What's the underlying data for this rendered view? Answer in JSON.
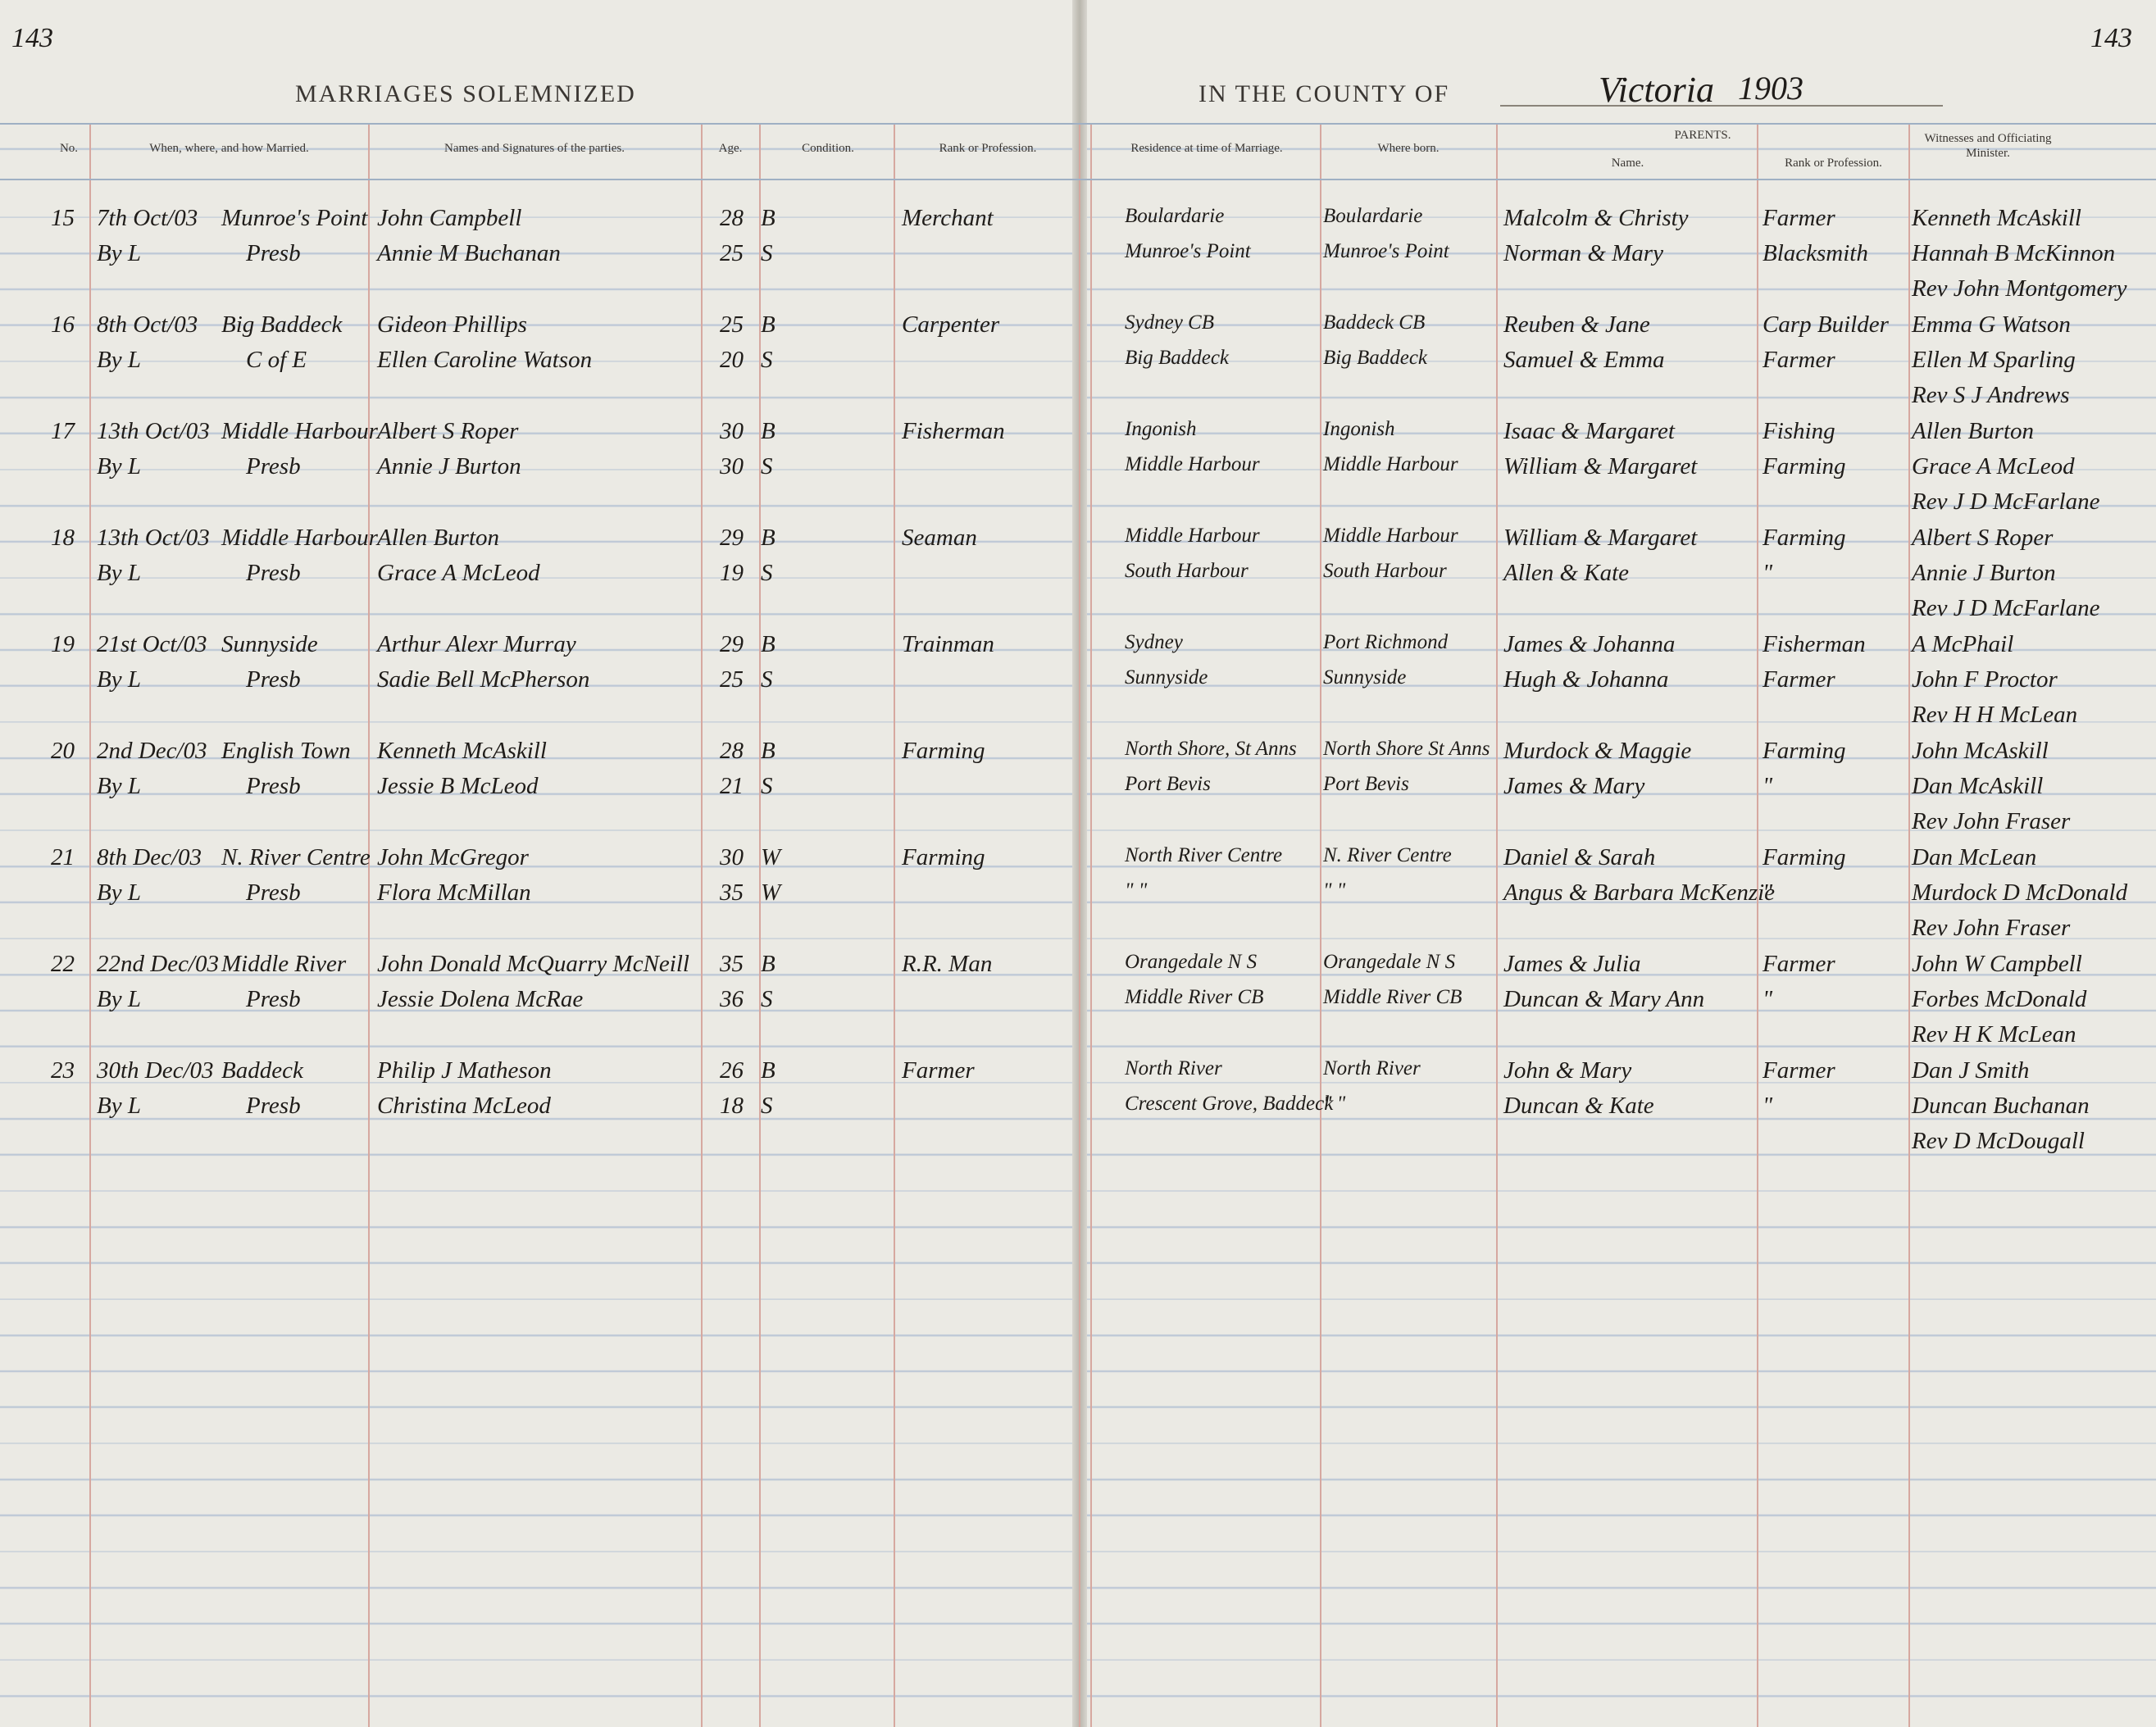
{
  "header": {
    "page_left": "143",
    "page_right": "143",
    "left_title": "MARRIAGES SOLEMNIZED",
    "right_title": "IN THE COUNTY OF",
    "county": "Victoria",
    "year": "1903"
  },
  "columns": {
    "no": "No.",
    "when": "When, where, and how Married.",
    "names": "Names and Signatures of the parties.",
    "age": "Age.",
    "condition": "Condition.",
    "profession": "Rank or Profession.",
    "residence": "Residence at time of Marriage.",
    "born": "Where born.",
    "parents": "PARENTS.",
    "parents_name": "Name.",
    "parents_rank": "Rank or Profession.",
    "witnesses": "Witnesses and Officiating Minister."
  },
  "entries": [
    {
      "no": "15",
      "date": "7th Oct/03",
      "place": "Munroe's Point",
      "license": "By L",
      "denomination": "Presb",
      "groom": {
        "name": "John Campbell",
        "age": "28",
        "condition": "B",
        "profession": "Merchant",
        "residence": "Boulardarie",
        "born": "Boulardarie",
        "parents": "Malcolm & Christy",
        "parents_rank": "Farmer",
        "witness": "Kenneth McAskill"
      },
      "bride": {
        "name": "Annie M Buchanan",
        "age": "25",
        "condition": "S",
        "residence": "Munroe's Point",
        "born": "Munroe's Point",
        "parents": "Norman & Mary",
        "parents_rank": "Blacksmith",
        "witness": "Hannah B McKinnon"
      },
      "minister": "Rev John Montgomery"
    },
    {
      "no": "16",
      "date": "8th Oct/03",
      "place": "Big Baddeck",
      "license": "By L",
      "denomination": "C of E",
      "groom": {
        "name": "Gideon Phillips",
        "age": "25",
        "condition": "B",
        "profession": "Carpenter",
        "residence": "Sydney CB",
        "born": "Baddeck CB",
        "parents": "Reuben & Jane",
        "parents_rank": "Carp Builder",
        "witness": "Emma G Watson"
      },
      "bride": {
        "name": "Ellen Caroline Watson",
        "age": "20",
        "condition": "S",
        "residence": "Big Baddeck",
        "born": "Big Baddeck",
        "parents": "Samuel & Emma",
        "parents_rank": "Farmer",
        "witness": "Ellen M Sparling"
      },
      "minister": "Rev S J Andrews"
    },
    {
      "no": "17",
      "date": "13th Oct/03",
      "place": "Middle Harbour",
      "license": "By L",
      "denomination": "Presb",
      "groom": {
        "name": "Albert S Roper",
        "age": "30",
        "condition": "B",
        "profession": "Fisherman",
        "residence": "Ingonish",
        "born": "Ingonish",
        "parents": "Isaac & Margaret",
        "parents_rank": "Fishing",
        "witness": "Allen Burton"
      },
      "bride": {
        "name": "Annie J Burton",
        "age": "30",
        "condition": "S",
        "residence": "Middle Harbour",
        "born": "Middle Harbour",
        "parents": "William & Margaret",
        "parents_rank": "Farming",
        "witness": "Grace A McLeod"
      },
      "minister": "Rev J D McFarlane"
    },
    {
      "no": "18",
      "date": "13th Oct/03",
      "place": "Middle Harbour",
      "license": "By L",
      "denomination": "Presb",
      "groom": {
        "name": "Allen Burton",
        "age": "29",
        "condition": "B",
        "profession": "Seaman",
        "residence": "Middle Harbour",
        "born": "Middle Harbour",
        "parents": "William & Margaret",
        "parents_rank": "Farming",
        "witness": "Albert S Roper"
      },
      "bride": {
        "name": "Grace A McLeod",
        "age": "19",
        "condition": "S",
        "residence": "South Harbour",
        "born": "South Harbour",
        "parents": "Allen & Kate",
        "parents_rank": "\"",
        "witness": "Annie J Burton"
      },
      "minister": "Rev J D McFarlane"
    },
    {
      "no": "19",
      "date": "21st Oct/03",
      "place": "Sunnyside",
      "license": "By L",
      "denomination": "Presb",
      "groom": {
        "name": "Arthur Alexr Murray",
        "age": "29",
        "condition": "B",
        "profession": "Trainman",
        "residence": "Sydney",
        "born": "Port Richmond",
        "parents": "James & Johanna",
        "parents_rank": "Fisherman",
        "witness": "A McPhail"
      },
      "bride": {
        "name": "Sadie Bell McPherson",
        "age": "25",
        "condition": "S",
        "residence": "Sunnyside",
        "born": "Sunnyside",
        "parents": "Hugh & Johanna",
        "parents_rank": "Farmer",
        "witness": "John F Proctor"
      },
      "minister": "Rev H H McLean"
    },
    {
      "no": "20",
      "date": "2nd Dec/03",
      "place": "English Town",
      "license": "By L",
      "denomination": "Presb",
      "groom": {
        "name": "Kenneth McAskill",
        "age": "28",
        "condition": "B",
        "profession": "Farming",
        "residence": "North Shore, St Anns",
        "born": "North Shore St Anns",
        "parents": "Murdock & Maggie",
        "parents_rank": "Farming",
        "witness": "John McAskill"
      },
      "bride": {
        "name": "Jessie B McLeod",
        "age": "21",
        "condition": "S",
        "residence": "Port Bevis",
        "born": "Port Bevis",
        "parents": "James & Mary",
        "parents_rank": "\"",
        "witness": "Dan McAskill"
      },
      "minister": "Rev John Fraser"
    },
    {
      "no": "21",
      "date": "8th Dec/03",
      "place": "N. River Centre",
      "license": "By L",
      "denomination": "Presb",
      "groom": {
        "name": "John McGregor",
        "age": "30",
        "condition": "W",
        "profession": "Farming",
        "residence": "North River Centre",
        "born": "N. River Centre",
        "parents": "Daniel & Sarah",
        "parents_rank": "Farming",
        "witness": "Dan McLean"
      },
      "bride": {
        "name": "Flora McMillan",
        "age": "35",
        "condition": "W",
        "residence": "\"  \"",
        "born": "\"  \"",
        "parents": "Angus & Barbara McKenzie",
        "parents_rank": "\"",
        "witness": "Murdock D McDonald"
      },
      "minister": "Rev John Fraser"
    },
    {
      "no": "22",
      "date": "22nd Dec/03",
      "place": "Middle River",
      "license": "By L",
      "denomination": "Presb",
      "groom": {
        "name": "John Donald McQuarry McNeill",
        "age": "35",
        "condition": "B",
        "profession": "R.R. Man",
        "residence": "Orangedale N S",
        "born": "Orangedale N S",
        "parents": "James & Julia",
        "parents_rank": "Farmer",
        "witness": "John W Campbell"
      },
      "bride": {
        "name": "Jessie Dolena McRae",
        "age": "36",
        "condition": "S",
        "residence": "Middle River CB",
        "born": "Middle River CB",
        "parents": "Duncan & Mary Ann",
        "parents_rank": "\"",
        "witness": "Forbes McDonald"
      },
      "minister": "Rev H K McLean"
    },
    {
      "no": "23",
      "date": "30th Dec/03",
      "place": "Baddeck",
      "license": "By L",
      "denomination": "Presb",
      "groom": {
        "name": "Philip J Matheson",
        "age": "26",
        "condition": "B",
        "profession": "Farmer",
        "residence": "North River",
        "born": "North River",
        "parents": "John & Mary",
        "parents_rank": "Farmer",
        "witness": "Dan J Smith"
      },
      "bride": {
        "name": "Christina McLeod",
        "age": "18",
        "condition": "S",
        "residence": "Crescent Grove, Baddeck",
        "born": "\"  \"",
        "parents": "Duncan & Kate",
        "parents_rank": "\"",
        "witness": "Duncan Buchanan"
      },
      "minister": "Rev D McDougall"
    }
  ]
}
